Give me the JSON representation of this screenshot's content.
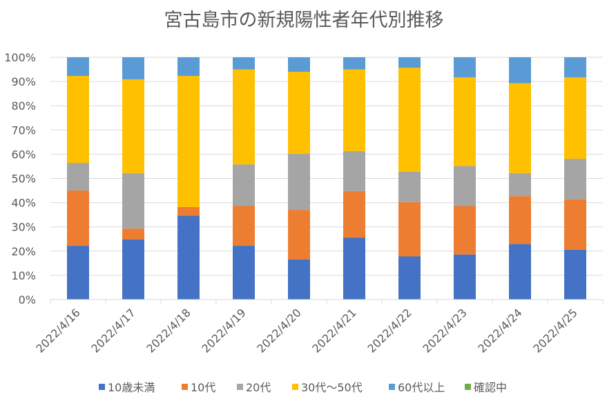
{
  "chart_data": {
    "type": "bar",
    "stacked": "percent",
    "title": "宮古島市の新規陽性者年代別推移",
    "xlabel": "",
    "ylabel": "",
    "ylim": [
      0,
      100
    ],
    "yticks": [
      "0%",
      "10%",
      "20%",
      "30%",
      "40%",
      "50%",
      "60%",
      "70%",
      "80%",
      "90%",
      "100%"
    ],
    "grid": true,
    "legend": "bottom",
    "categories": [
      "2022/4/16",
      "2022/4/17",
      "2022/4/18",
      "2022/4/19",
      "2022/4/20",
      "2022/4/21",
      "2022/4/22",
      "2022/4/23",
      "2022/4/24",
      "2022/4/25"
    ],
    "series": [
      {
        "name": "10歳未満",
        "color": "#4472C4",
        "values": [
          22.2,
          24.8,
          34.6,
          22.2,
          16.6,
          25.5,
          17.8,
          18.6,
          22.9,
          20.6
        ]
      },
      {
        "name": "10代",
        "color": "#ED7D31",
        "values": [
          22.8,
          4.5,
          3.6,
          16.4,
          20.4,
          19.3,
          22.4,
          20.0,
          19.8,
          20.8
        ]
      },
      {
        "name": "20代",
        "color": "#A5A5A5",
        "values": [
          11.4,
          22.9,
          0,
          17.2,
          23.2,
          16.5,
          12.6,
          16.5,
          9.5,
          16.7
        ]
      },
      {
        "name": "30代～50代",
        "color": "#FFC000",
        "values": [
          35.9,
          38.7,
          54.1,
          39.2,
          33.8,
          33.7,
          42.9,
          36.6,
          37.1,
          33.6
        ]
      },
      {
        "name": "60代以上",
        "color": "#5B9BD5",
        "values": [
          7.7,
          9.1,
          7.7,
          5.0,
          6.0,
          5.0,
          4.3,
          8.3,
          10.7,
          8.3
        ]
      },
      {
        "name": "確認中",
        "color": "#70AD47",
        "values": [
          0,
          0,
          0,
          0,
          0,
          0,
          0,
          0,
          0,
          0
        ]
      }
    ]
  }
}
